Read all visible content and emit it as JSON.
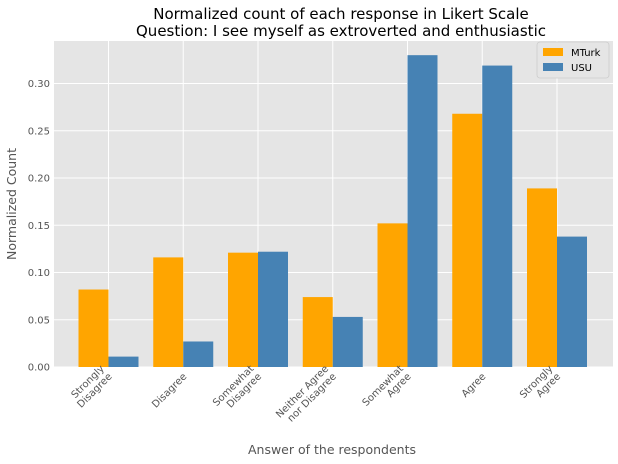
{
  "chart_data": {
    "type": "bar",
    "title_line1": "Normalized count of each response in Likert Scale",
    "title_line2": "Question: I see myself as extroverted and enthusiastic",
    "xlabel": "Answer of the respondents",
    "ylabel": "Normalized Count",
    "categories": [
      [
        "Strongly",
        "Disagree"
      ],
      [
        "Disagree"
      ],
      [
        "Somewhat",
        "Disagree"
      ],
      [
        "Neither Agree",
        "nor Disagree"
      ],
      [
        "Somewhat",
        "Agree"
      ],
      [
        "Agree"
      ],
      [
        "Strongly",
        "Agree"
      ]
    ],
    "series": [
      {
        "name": "MTurk",
        "color": "#FFA500",
        "values": [
          0.082,
          0.116,
          0.121,
          0.074,
          0.152,
          0.268,
          0.189
        ]
      },
      {
        "name": "USU",
        "color": "#4682B4",
        "values": [
          0.011,
          0.027,
          0.122,
          0.053,
          0.33,
          0.319,
          0.138
        ]
      }
    ],
    "ylim": [
      0,
      0.345
    ],
    "yticks": [
      "0.00",
      "0.05",
      "0.10",
      "0.15",
      "0.20",
      "0.25",
      "0.30"
    ],
    "grid": true,
    "legend_position": "top-right",
    "background": "#E5E5E5"
  }
}
